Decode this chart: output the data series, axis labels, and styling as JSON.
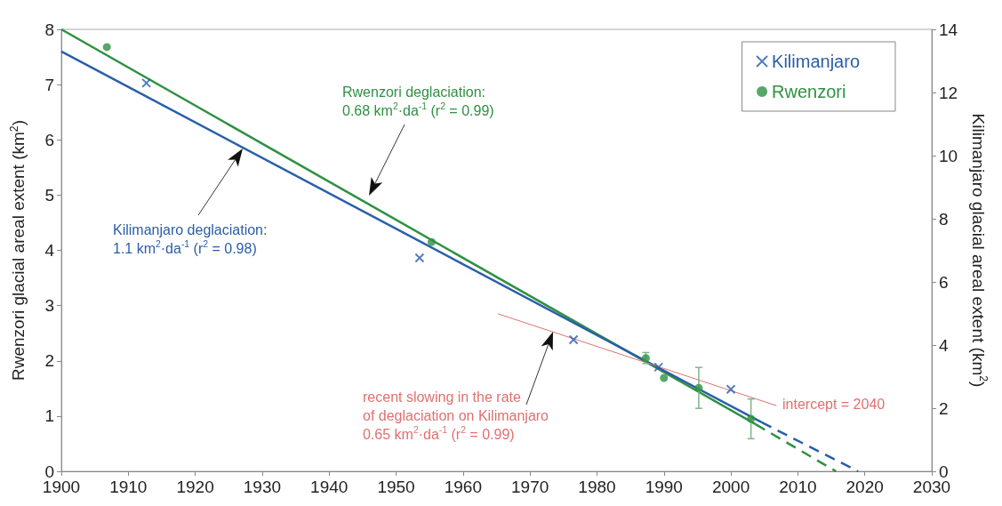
{
  "chart_data": {
    "type": "scatter",
    "ylabel": "Rwenzori glacial areal extent (km$^{2}$)",
    "y2label": "Kilimanjaro glacial areal extent (km$^{2}$)",
    "xlim": [
      1900,
      2030
    ],
    "xticks": [
      1900,
      1910,
      1920,
      1930,
      1940,
      1950,
      1960,
      1970,
      1980,
      1990,
      2000,
      2010,
      2020,
      2030
    ],
    "ylim": [
      0,
      8
    ],
    "yticks": [
      0,
      1,
      2,
      3,
      4,
      5,
      6,
      7,
      8
    ],
    "y2lim": [
      0,
      14
    ],
    "y2ticks": [
      0,
      2,
      4,
      6,
      8,
      10,
      12,
      14
    ],
    "grid": false,
    "legend": "top right",
    "series": [
      {
        "name": "Kilimanjaro",
        "axis": "y2",
        "marker": "cross",
        "color": "#2a5ea8",
        "x": [
          1912.7,
          1953.5,
          1976.5,
          1989.2,
          2000
        ],
        "values": [
          12.3,
          6.76,
          4.17,
          3.3,
          2.6
        ]
      },
      {
        "name": "Rwenzori",
        "marker": "circle",
        "color": "#2e9142",
        "x": [
          1906.8,
          1955.3,
          1987.3,
          1990,
          1995.2,
          2003
        ],
        "values": [
          7.68,
          4.15,
          2.05,
          1.69,
          1.51,
          0.95
        ],
        "errors": [
          null,
          null,
          0.1,
          null,
          0.37,
          0.36
        ]
      },
      {
        "type": "line",
        "line_style": "solid",
        "color": "#2e9142",
        "x": [
          1900,
          2003.7
        ],
        "values": [
          8.0,
          0.85
        ]
      },
      {
        "type": "line",
        "line_style": "dashed",
        "color": "#2e9142",
        "x": [
          2003.7,
          2015.7
        ],
        "values": [
          0.85,
          0
        ]
      },
      {
        "type": "line",
        "axis": "y2",
        "line_style": "solid",
        "color": "#2a5ea8",
        "x": [
          1900,
          2004.6
        ],
        "values": [
          13.3,
          1.55
        ]
      },
      {
        "type": "line",
        "axis": "y2",
        "line_style": "dashed",
        "color": "#2a5ea8",
        "x": [
          2004.6,
          2019
        ],
        "values": [
          1.55,
          0
        ]
      },
      {
        "type": "line",
        "axis": "y2",
        "line_style": "solid",
        "color": "#e07070",
        "x": [
          1965.2,
          2006.8
        ],
        "values": [
          4.99,
          2.08
        ]
      }
    ],
    "annotations": [
      "Rwenzori deglaciation:\n0.68 km$^{2}$·da$^{-1}$ (r$^{2}$ = 0.99)",
      "Kilimanjaro deglaciation:\n1.1 km$^{2}$·da$^{-1}$ (r$^{2}$ = 0.98)",
      "recent slowing in the rate\nof deglaciation on Kilimanjaro\n0.65 km$^{2}$·da$^{-1}$ (r$^{2}$ = 0.99)",
      "intercept = 2040"
    ]
  }
}
